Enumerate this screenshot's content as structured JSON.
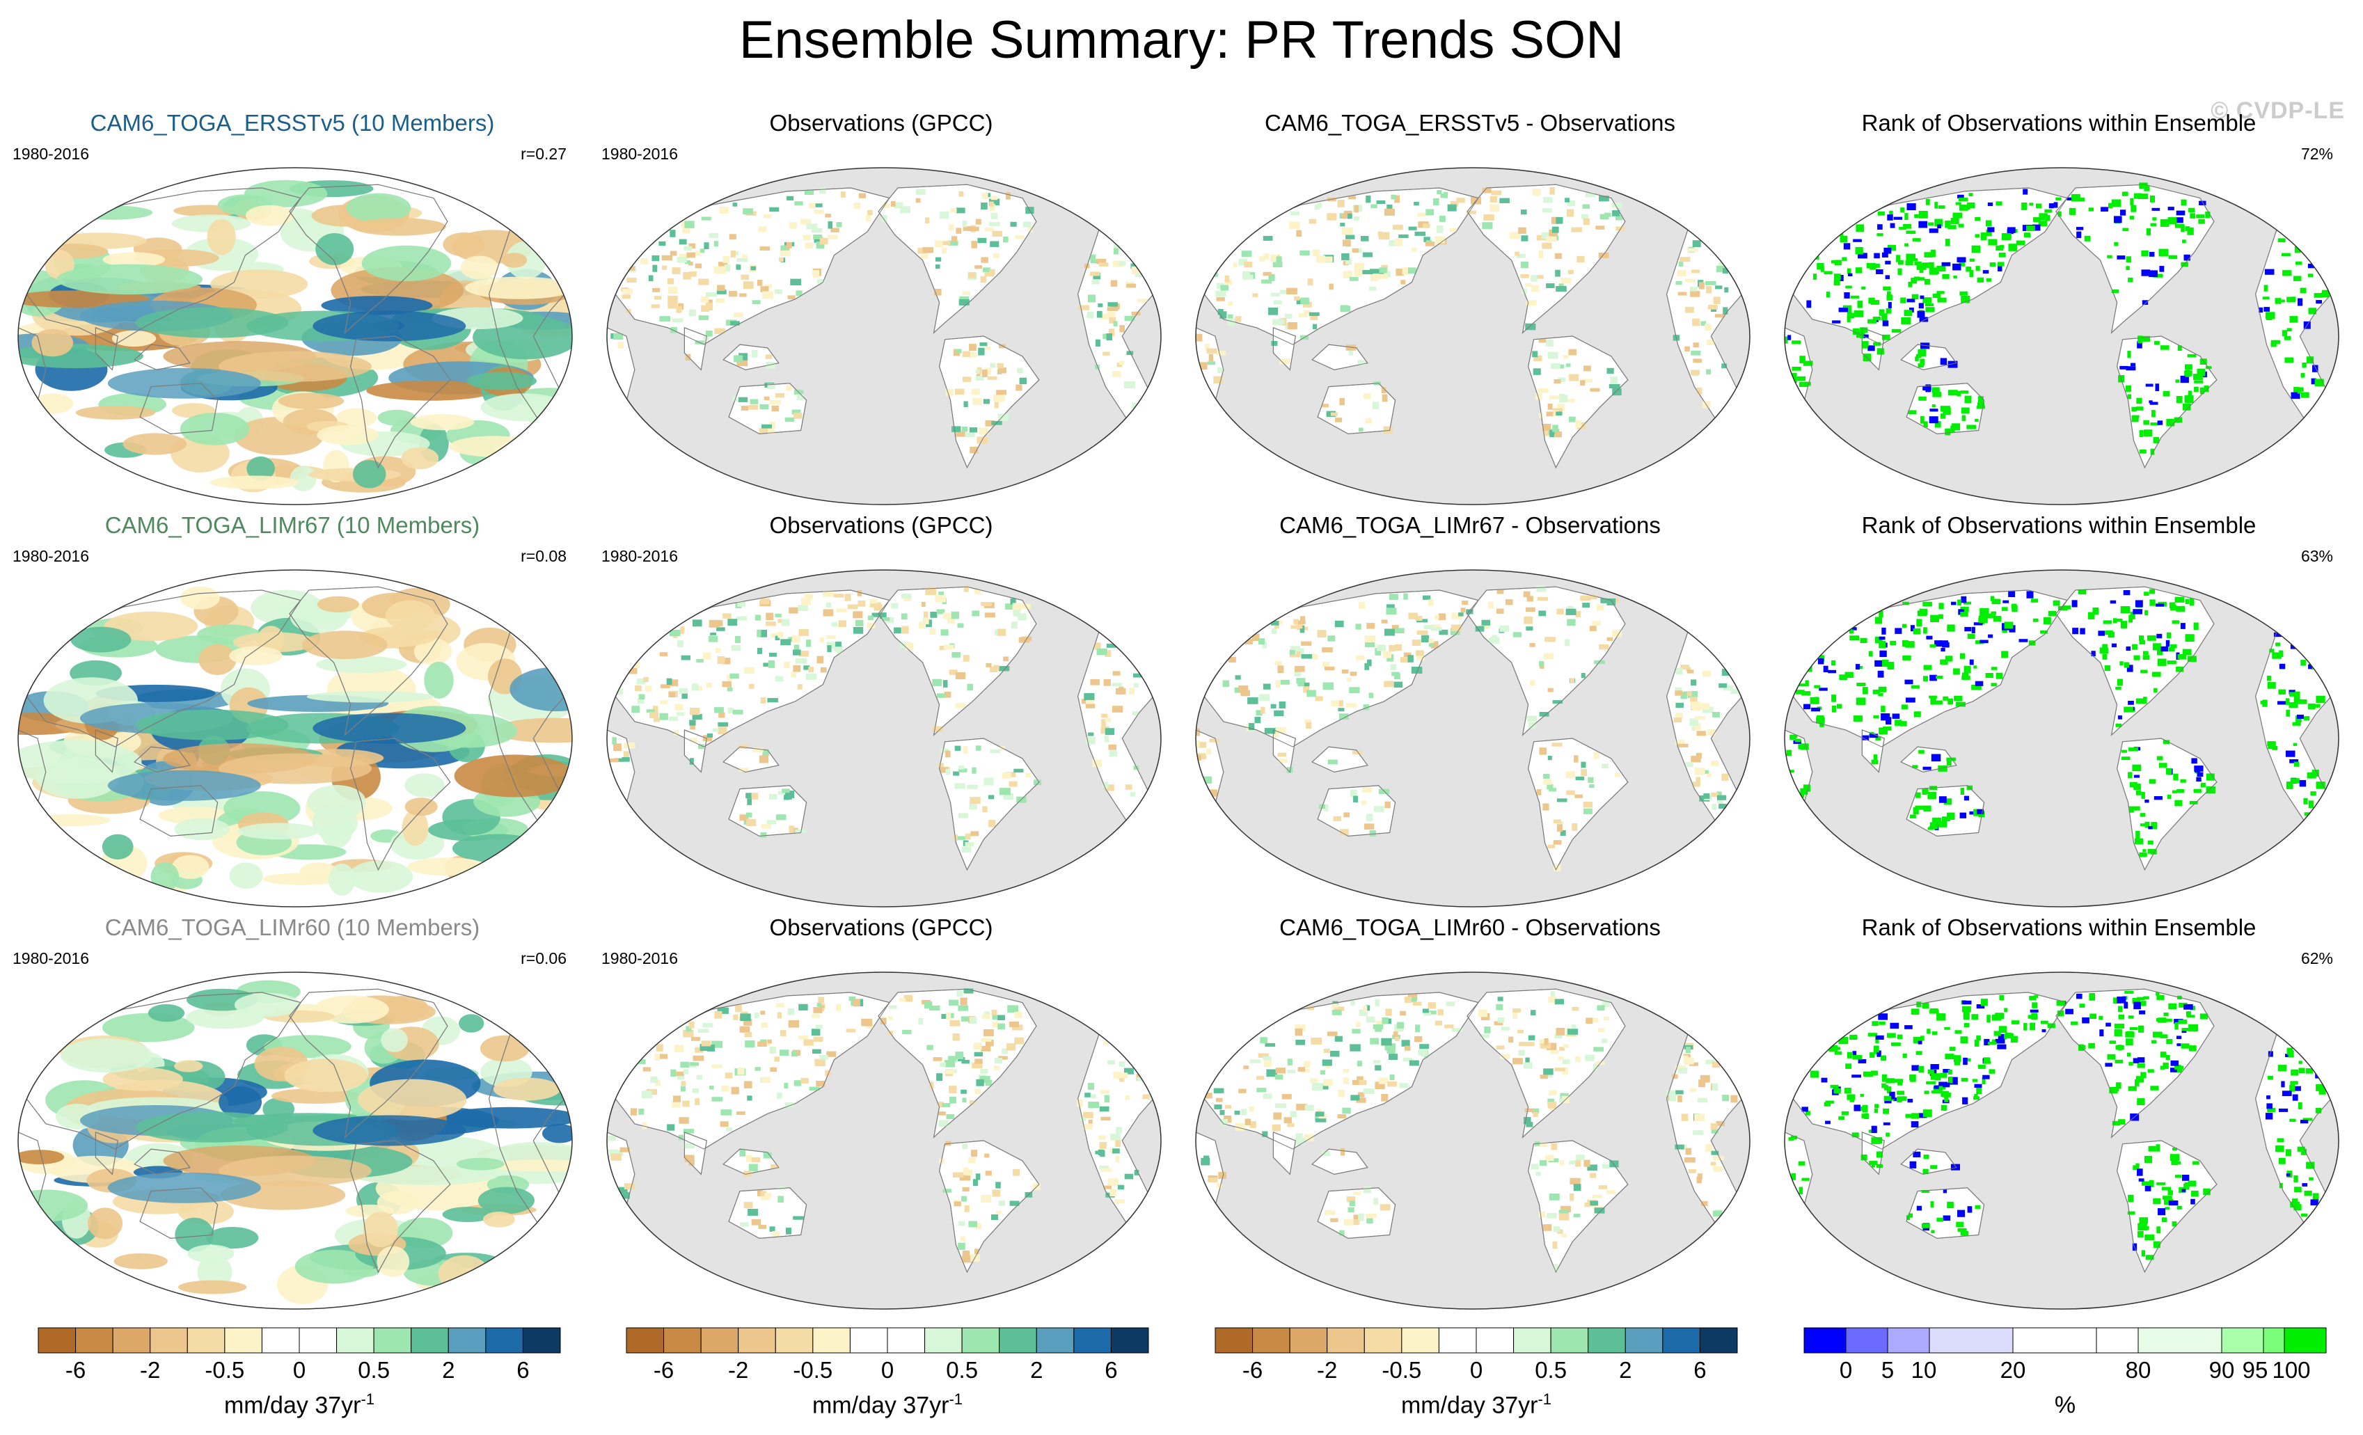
{
  "title": "Ensemble Summary: PR Trends SON",
  "watermark": "© CVDP-LE",
  "colors": {
    "ocean_gray": "#e3e3e3",
    "map_bg": "#ffffff",
    "brown_scale": [
      "#b06a28",
      "#c98a45",
      "#dba868",
      "#ecc68c",
      "#f5dca6",
      "#fdf3c8"
    ],
    "green_scale": [
      "#d8f6d8",
      "#9ee6b0",
      "#5cbf98",
      "#5a9fbe",
      "#1c6aa8",
      "#0c3a62"
    ],
    "rank_scale": [
      "#0000ff",
      "#6a6aff",
      "#aaaaff",
      "#dcdcff",
      "#ffffff",
      "#e6fce6",
      "#aaffaa",
      "#7aff7a",
      "#00ee00"
    ],
    "member_title_colors": [
      "#1b5e8a",
      "#4f8a5f",
      "#8a8a8a"
    ]
  },
  "rows": [
    {
      "model_title": "CAM6_TOGA_ERSSTv5 (10 Members)",
      "period": "1980-2016",
      "model_r": "r=0.27",
      "obs_title": "Observations (GPCC)",
      "obs_period": "1980-2016",
      "diff_title": "CAM6_TOGA_ERSSTv5 - Observations",
      "rank_title": "Rank of Observations within Ensemble",
      "rank_pct": "72%"
    },
    {
      "model_title": "CAM6_TOGA_LIMr67 (10 Members)",
      "period": "1980-2016",
      "model_r": "r=0.08",
      "obs_title": "Observations (GPCC)",
      "obs_period": "1980-2016",
      "diff_title": "CAM6_TOGA_LIMr67 - Observations",
      "rank_title": "Rank of Observations within Ensemble",
      "rank_pct": "63%"
    },
    {
      "model_title": "CAM6_TOGA_LIMr60 (10 Members)",
      "period": "1980-2016",
      "model_r": "r=0.06",
      "obs_title": "Observations (GPCC)",
      "obs_period": "1980-2016",
      "diff_title": "CAM6_TOGA_LIMr60 - Observations",
      "rank_title": "Rank of Observations within Ensemble",
      "rank_pct": "62%"
    }
  ],
  "colorbars": {
    "trend": {
      "ticks": [
        "-6",
        "-2",
        "-0.5",
        "0",
        "0.5",
        "2",
        "6"
      ],
      "label_main": "mm/day 37yr",
      "label_sup": "-1"
    },
    "rank": {
      "ticks": [
        "0",
        "5",
        "10",
        "20",
        "80",
        "90",
        "95",
        "100"
      ],
      "label": "%"
    }
  }
}
